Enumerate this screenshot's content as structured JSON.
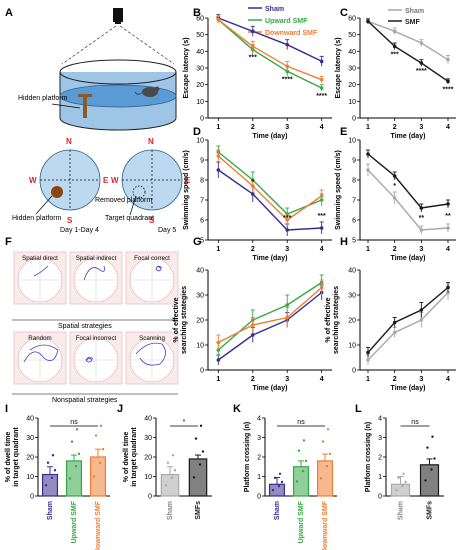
{
  "colors": {
    "sham": "#3b2b8f",
    "upward": "#35a845",
    "downward": "#ef7d33",
    "sham_gray": "#a9a9a9",
    "smf_black": "#1a1a1a",
    "stars": "#111111",
    "red_label": "#d62728",
    "water": "#5b9bd5",
    "pool_bg": "#9ec5e6"
  },
  "panel_letters": [
    "A",
    "B",
    "C",
    "D",
    "E",
    "F",
    "G",
    "H",
    "I",
    "J",
    "K",
    "L"
  ],
  "panelA": {
    "hidden_platform_label": "Hidden platform",
    "removed_platform_label": "Removed platform",
    "target_quadrant_label": "Target quadrant",
    "day_left": "Day 1-Day 4",
    "day_right": "Day 5",
    "compass": {
      "n": "N",
      "s": "S",
      "w": "W",
      "e": "E"
    }
  },
  "panelF": {
    "spatial_title": "Spatial strategies",
    "nonspatial_title": "Nonspatial strategies",
    "spatial_items": [
      "Spatial direct",
      "Spatial indirect",
      "Focal correct"
    ],
    "nonspatial_items": [
      "Random",
      "Focal incorrect",
      "Scanning"
    ]
  },
  "legend_B": {
    "sham": "Sham",
    "upward": "Upward SMF",
    "downward": "Downward SMF"
  },
  "legend_C": {
    "sham": "Sham",
    "smf": "SMF"
  },
  "xlabel_day": "Time (day)",
  "ylabels": {
    "B": "Escape latency (s)",
    "C": "Escape latency (s)",
    "D": "Swimming speed (cm/s)",
    "E": "Swimming speed (cm/s)",
    "G1": "% of effective",
    "G2": "searching strategies",
    "H1": "% of effective",
    "H2": "searching strategies",
    "I1": "% of dwell time",
    "I2": "in target quadrant",
    "J1": "% of dwell time",
    "J2": "in target quadrant",
    "K": "Platform crossing (n)",
    "L": "Platform crossing (n)"
  },
  "sig": {
    "I": "ns",
    "J": "*",
    "K": "ns",
    "L": "ns",
    "B_d2": "***",
    "B_d3": "****",
    "B_d4": "****",
    "C_d2": "***",
    "C_d3": "****",
    "C_d4": "****",
    "D_d2": "*",
    "D_d3": "***",
    "D_d4": "***",
    "E_d2": "*",
    "E_d3": "**",
    "E_d4": "**"
  },
  "chart_data": [
    {
      "id": "B",
      "type": "line",
      "x": [
        1,
        2,
        3,
        4
      ],
      "xlim": [
        0.7,
        4.3
      ],
      "ylim": [
        0,
        60
      ],
      "yticks": [
        0,
        10,
        20,
        30,
        40,
        50,
        60
      ],
      "series": [
        {
          "name": "Sham",
          "values": [
            60,
            52,
            44,
            34
          ],
          "err": [
            2,
            3,
            3,
            3
          ]
        },
        {
          "name": "Upward SMF",
          "values": [
            59,
            41,
            28,
            18
          ],
          "err": [
            2,
            3,
            3,
            2
          ]
        },
        {
          "name": "Downward SMF",
          "values": [
            59,
            43,
            31,
            23
          ],
          "err": [
            2,
            3,
            3,
            2
          ]
        }
      ]
    },
    {
      "id": "C",
      "type": "line",
      "x": [
        1,
        2,
        3,
        4
      ],
      "xlim": [
        0.7,
        4.3
      ],
      "ylim": [
        0,
        60
      ],
      "yticks": [
        0,
        10,
        20,
        30,
        40,
        50,
        60
      ],
      "series": [
        {
          "name": "Sham",
          "values": [
            58,
            52,
            45,
            35
          ],
          "err": [
            1.5,
            2,
            2,
            2.5
          ]
        },
        {
          "name": "SMF",
          "values": [
            58,
            43,
            33,
            22
          ],
          "err": [
            1.5,
            2,
            2,
            1.5
          ]
        }
      ]
    },
    {
      "id": "D",
      "type": "line",
      "x": [
        1,
        2,
        3,
        4
      ],
      "xlim": [
        0.7,
        4.3
      ],
      "ylim": [
        5,
        10
      ],
      "yticks": [
        5,
        6,
        7,
        8,
        9,
        10
      ],
      "series": [
        {
          "name": "Sham",
          "values": [
            8.5,
            7.3,
            5.5,
            5.6
          ],
          "err": [
            0.4,
            0.4,
            0.3,
            0.3
          ]
        },
        {
          "name": "Upward SMF",
          "values": [
            9.4,
            8.0,
            6.3,
            7.0
          ],
          "err": [
            0.3,
            0.4,
            0.3,
            0.3
          ]
        },
        {
          "name": "Downward SMF",
          "values": [
            9.2,
            7.7,
            6.0,
            7.2
          ],
          "err": [
            0.3,
            0.3,
            0.3,
            0.3
          ]
        }
      ]
    },
    {
      "id": "E",
      "type": "line",
      "x": [
        1,
        2,
        3,
        4
      ],
      "xlim": [
        0.7,
        4.3
      ],
      "ylim": [
        5,
        10
      ],
      "yticks": [
        5,
        6,
        7,
        8,
        9,
        10
      ],
      "series": [
        {
          "name": "Sham",
          "values": [
            8.5,
            7.1,
            5.5,
            5.6
          ],
          "err": [
            0.3,
            0.3,
            0.2,
            0.2
          ]
        },
        {
          "name": "SMF",
          "values": [
            9.3,
            8.2,
            6.6,
            6.8
          ],
          "err": [
            0.2,
            0.2,
            0.2,
            0.2
          ]
        }
      ]
    },
    {
      "id": "G",
      "type": "line",
      "x": [
        1,
        2,
        3,
        4
      ],
      "xlim": [
        0.7,
        4.3
      ],
      "ylim": [
        0,
        40
      ],
      "yticks": [
        0,
        10,
        20,
        30,
        40
      ],
      "series": [
        {
          "name": "Sham",
          "values": [
            4,
            14,
            20,
            31
          ],
          "err": [
            2,
            3,
            3,
            3
          ]
        },
        {
          "name": "Upward SMF",
          "values": [
            8,
            20,
            26,
            35
          ],
          "err": [
            3,
            4,
            4,
            3
          ]
        },
        {
          "name": "Downward SMF",
          "values": [
            11,
            18,
            21,
            33
          ],
          "err": [
            3,
            3,
            4,
            3
          ]
        }
      ]
    },
    {
      "id": "H",
      "type": "line",
      "x": [
        1,
        2,
        3,
        4
      ],
      "xlim": [
        0.7,
        4.3
      ],
      "ylim": [
        0,
        40
      ],
      "yticks": [
        0,
        10,
        20,
        30,
        40
      ],
      "series": [
        {
          "name": "Sham",
          "values": [
            4,
            15,
            20,
            31
          ],
          "err": [
            2,
            2,
            3,
            3
          ]
        },
        {
          "name": "SMF",
          "values": [
            7,
            19,
            24,
            33
          ],
          "err": [
            2,
            2,
            3,
            2
          ]
        }
      ]
    },
    {
      "id": "I",
      "type": "bar",
      "categories": [
        "Sham",
        "Upward SMF",
        "Downward SMF"
      ],
      "values": [
        11,
        18,
        20
      ],
      "err": [
        4,
        3,
        4
      ],
      "ylim": [
        0,
        40
      ],
      "yticks": [
        0,
        10,
        20,
        30,
        40
      ]
    },
    {
      "id": "J",
      "type": "bar",
      "categories": [
        "Sham",
        "SMFs"
      ],
      "values": [
        11,
        19
      ],
      "err": [
        4,
        2
      ],
      "ylim": [
        0,
        40
      ],
      "yticks": [
        0,
        10,
        20,
        30,
        40
      ]
    },
    {
      "id": "K",
      "type": "bar",
      "categories": [
        "Sham",
        "Upward SMF",
        "Downward SMF"
      ],
      "values": [
        0.6,
        1.5,
        1.8
      ],
      "err": [
        0.35,
        0.3,
        0.35
      ],
      "ylim": [
        0,
        4
      ],
      "yticks": [
        0,
        1,
        2,
        3,
        4
      ]
    },
    {
      "id": "L",
      "type": "bar",
      "categories": [
        "Sham",
        "SMFs"
      ],
      "values": [
        0.6,
        1.6
      ],
      "err": [
        0.4,
        0.3
      ],
      "ylim": [
        0,
        4
      ],
      "yticks": [
        0,
        1,
        2,
        3,
        4
      ]
    }
  ]
}
